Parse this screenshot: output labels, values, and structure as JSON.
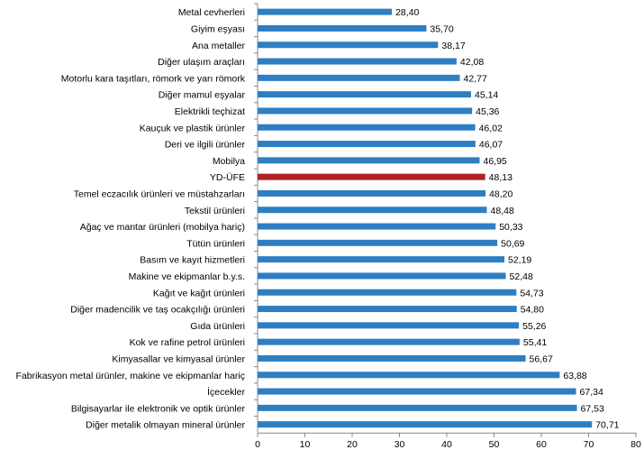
{
  "chart_data": {
    "type": "bar",
    "orientation": "horizontal",
    "categories": [
      "Metal cevherleri",
      "Giyim eşyası",
      "Ana metaller",
      "Diğer ulaşım araçları",
      "Motorlu kara taşıtları, römork ve yarı römork",
      "Diğer mamul eşyalar",
      "Elektrikli teçhizat",
      "Kauçuk ve plastik ürünler",
      "Deri ve ilgili ürünler",
      "Mobilya",
      "YD-ÜFE",
      "Temel eczacılık ürünleri ve müstahzarları",
      "Tekstil ürünleri",
      "Ağaç ve mantar ürünleri (mobilya hariç)",
      "Tütün ürünleri",
      "Basım ve kayıt hizmetleri",
      "Makine ve ekipmanlar b.y.s.",
      "Kağıt ve kağıt ürünleri",
      "Diğer madencilik ve taş ocakçılığı ürünleri",
      "Gıda ürünleri",
      "Kok ve rafine petrol ürünleri",
      "Kimyasallar ve kimyasal ürünler",
      "Fabrikasyon metal ürünler, makine ve ekipmanlar hariç",
      "İçecekler",
      "Bilgisayarlar ile elektronik ve optik ürünler",
      "Diğer metalik olmayan mineral ürünler"
    ],
    "values": [
      28.4,
      35.7,
      38.17,
      42.08,
      42.77,
      45.14,
      45.36,
      46.02,
      46.07,
      46.95,
      48.13,
      48.2,
      48.48,
      50.33,
      50.69,
      52.19,
      52.48,
      54.73,
      54.8,
      55.26,
      55.41,
      56.67,
      63.88,
      67.34,
      67.53,
      70.71
    ],
    "data_labels": [
      "28,40",
      "35,70",
      "38,17",
      "42,08",
      "42,77",
      "45,14",
      "45,36",
      "46,02",
      "46,07",
      "46,95",
      "48,13",
      "48,20",
      "48,48",
      "50,33",
      "50,69",
      "52,19",
      "52,48",
      "54,73",
      "54,80",
      "55,26",
      "55,41",
      "56,67",
      "63,88",
      "67,34",
      "67,53",
      "70,71"
    ],
    "highlight_category": "YD-ÜFE",
    "colors": {
      "bar": "#2e7ec4",
      "highlight": "#b22222"
    },
    "xlim": [
      0,
      80
    ],
    "xticks": [
      "0",
      "10",
      "20",
      "30",
      "40",
      "50",
      "60",
      "70",
      "80"
    ],
    "grid": false,
    "title": "",
    "xlabel": "",
    "ylabel": ""
  }
}
